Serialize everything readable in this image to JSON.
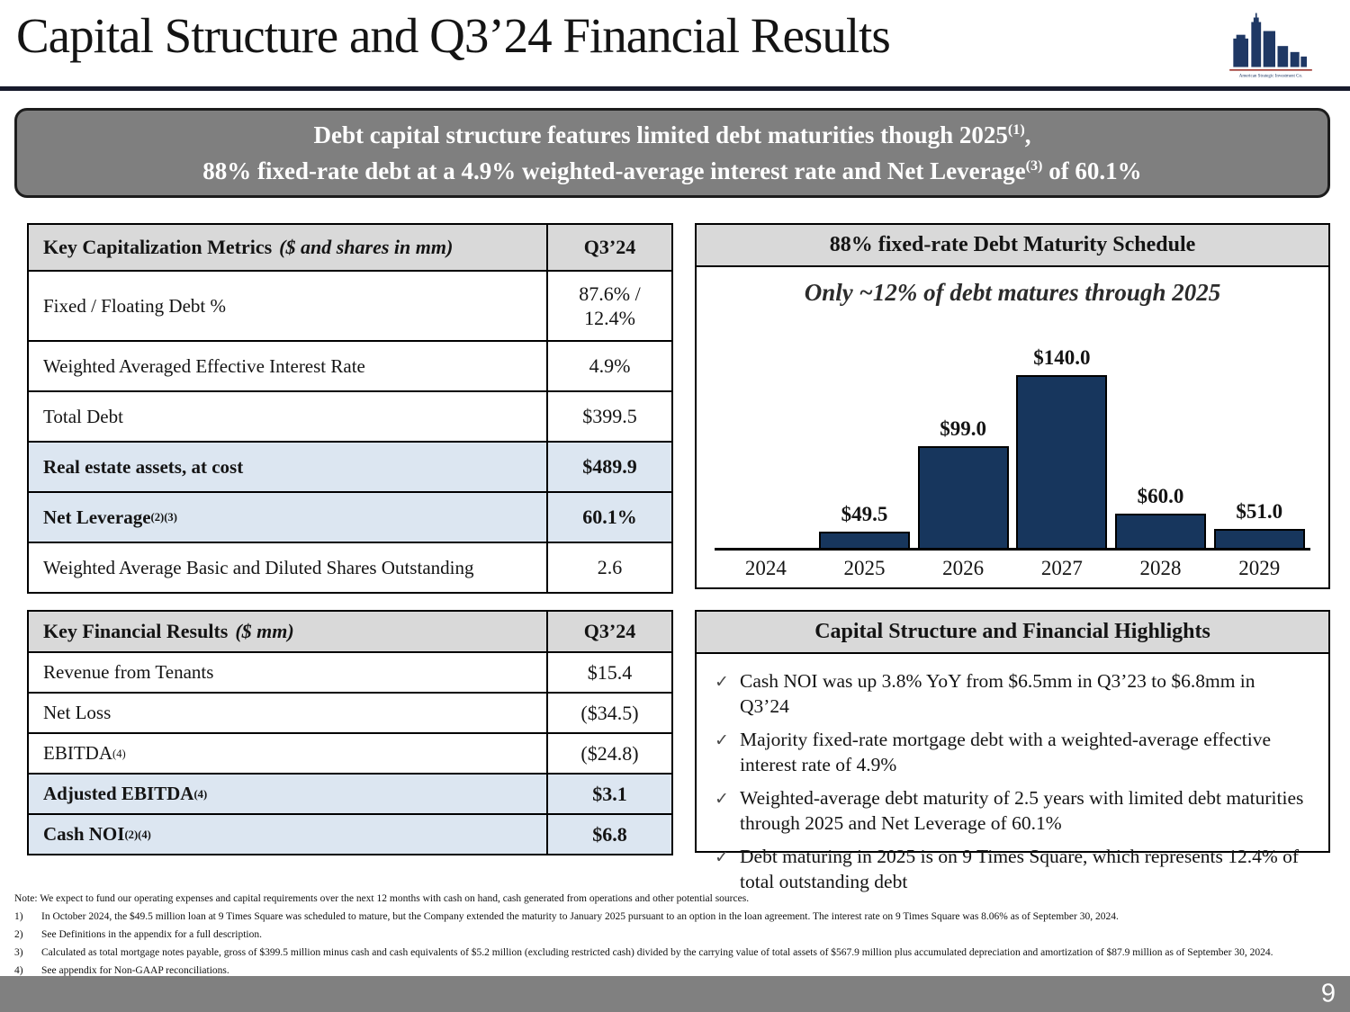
{
  "page": {
    "number": "9"
  },
  "header": {
    "title": "Capital Structure and Q3’24 Financial Results",
    "logo_caption": "American Strategic Investment Co."
  },
  "banner": {
    "line1_pre": "Debt capital structure features limited debt maturities though 2025",
    "line1_sup": "(1)",
    "line1_post": ",",
    "line2_pre": "88% fixed-rate debt at a 4.9% weighted-average interest rate and Net Leverage",
    "line2_sup": "(3)",
    "line2_post": " of 60.1%"
  },
  "cap_table": {
    "title": "Key Capitalization Metrics",
    "title_note": "($ and shares in mm)",
    "value_header": "Q3’24",
    "rows": [
      {
        "label": "Fixed / Floating Debt %",
        "sup": "",
        "value": "87.6% / 12.4%"
      },
      {
        "label": "Weighted Averaged Effective Interest Rate",
        "sup": "",
        "value": "4.9%"
      },
      {
        "label": "Total Debt",
        "sup": "",
        "value": "$399.5"
      },
      {
        "label": "Real estate assets, at cost",
        "sup": "",
        "value": "$489.9"
      },
      {
        "label": "Net Leverage",
        "sup": "(2)(3)",
        "value": "60.1%"
      },
      {
        "label": "Weighted Average Basic and Diluted Shares Outstanding",
        "sup": "",
        "value": "2.6"
      }
    ]
  },
  "fin_table": {
    "title": "Key Financial Results",
    "title_note": "($ mm)",
    "value_header": "Q3’24",
    "rows": [
      {
        "label": "Revenue from Tenants",
        "sup": "",
        "value": "$15.4"
      },
      {
        "label": "Net Loss",
        "sup": "",
        "value": "($34.5)"
      },
      {
        "label": "EBITDA",
        "sup": "(4)",
        "value": "($24.8)"
      },
      {
        "label": "Adjusted EBITDA",
        "sup": "(4)",
        "value": "$3.1"
      },
      {
        "label": "Cash NOI",
        "sup": "(2)(4)",
        "value": "$6.8"
      }
    ]
  },
  "chart_data": {
    "type": "bar",
    "title": "88% fixed-rate Debt Maturity Schedule",
    "subtitle": "Only ~12% of debt matures through 2025",
    "categories": [
      "2024",
      "2025",
      "2026",
      "2027",
      "2028",
      "2029"
    ],
    "values": [
      0,
      49.5,
      99.0,
      140.0,
      60.0,
      51.0
    ],
    "labels": [
      "",
      "$49.5",
      "$99.0",
      "$140.0",
      "$60.0",
      "$51.0"
    ],
    "xlabel": "",
    "ylabel": "",
    "ylim": [
      40,
      140
    ],
    "grid": false,
    "legend": "none",
    "bar_color": "#17365d"
  },
  "highlights": {
    "title": "Capital Structure and Financial Highlights",
    "check_glyph": "✓",
    "items": [
      "Cash NOI was up 3.8% YoY from $6.5mm in Q3’23 to $6.8mm in Q3’24",
      "Majority fixed-rate mortgage debt with a weighted-average effective interest rate of 4.9%",
      "Weighted-average debt maturity of 2.5 years with limited debt maturities through 2025 and Net Leverage of 60.1%",
      "Debt maturing in 2025 is on 9 Times Square, which represents 12.4% of total outstanding debt"
    ]
  },
  "footnotes": {
    "note": "Note: We expect to fund our operating expenses and capital requirements over the next 12 months with cash on hand, cash generated from operations and other potential sources.",
    "items": [
      {
        "num": "1)",
        "text": "In October 2024, the $49.5 million loan at 9 Times Square was scheduled to mature, but the Company extended the maturity to January 2025 pursuant to an option in the loan agreement. The interest rate on 9 Times Square was 8.06% as of September 30, 2024."
      },
      {
        "num": "2)",
        "text": "See Definitions in the appendix for a full description."
      },
      {
        "num": "3)",
        "text": "Calculated as total mortgage notes payable, gross of $399.5 million minus cash and cash equivalents of $5.2 million (excluding restricted cash) divided by the carrying value of total assets of $567.9 million plus accumulated depreciation and amortization of $87.9 million as of September 30, 2024."
      },
      {
        "num": "4)",
        "text": "See appendix for Non-GAAP reconciliations."
      }
    ]
  }
}
